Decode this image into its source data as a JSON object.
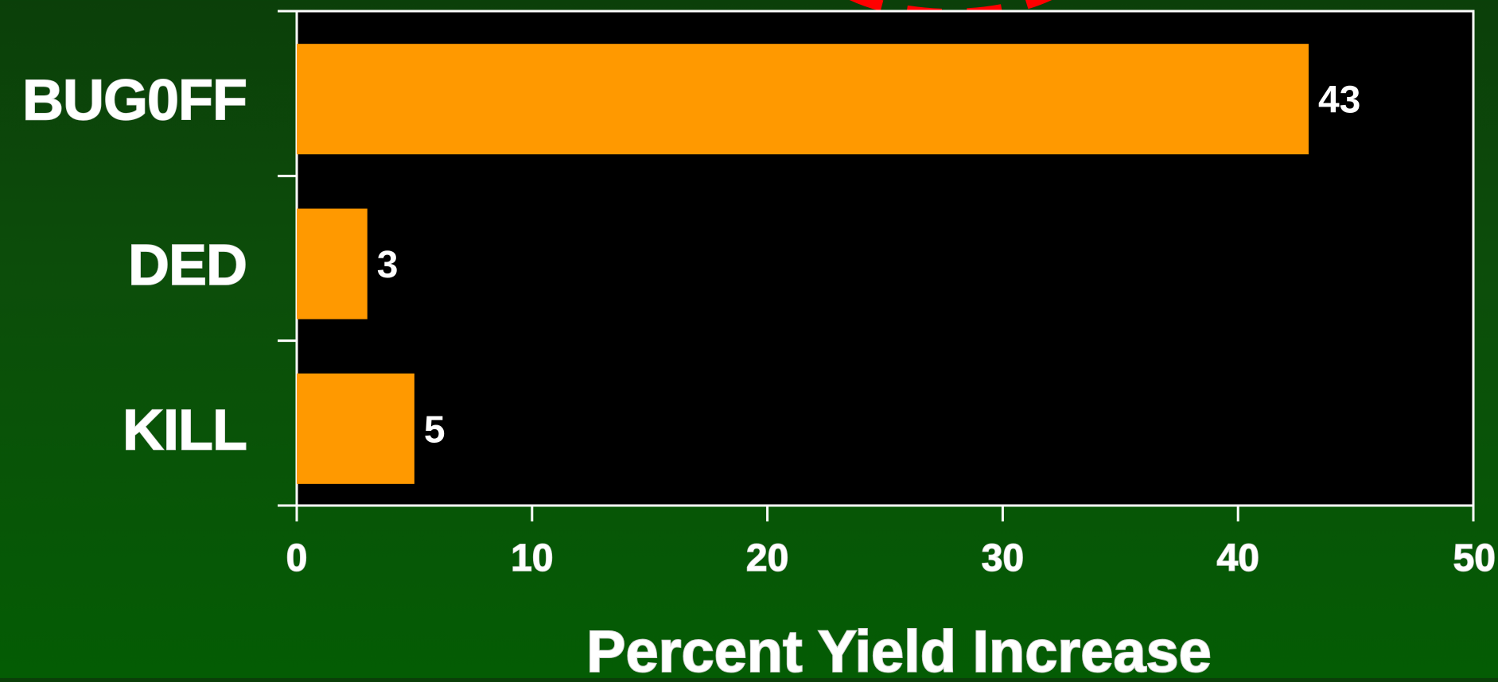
{
  "chart_data": {
    "type": "bar",
    "orientation": "horizontal",
    "categories": [
      "BUG0FF",
      "DED",
      "KILL"
    ],
    "values": [
      43,
      3,
      5
    ],
    "data_labels": [
      "43",
      "3",
      "5"
    ],
    "xlabel": "Percent Yield Increase",
    "ylabel": "",
    "xlim": [
      0,
      50
    ],
    "x_ticks": [
      "0",
      "10",
      "20",
      "30",
      "40",
      "50"
    ],
    "grid": false,
    "legend": "none",
    "colors": {
      "bar": "#ff9900",
      "plot_background": "#000000",
      "axis": "#ffffff",
      "annotation_dash": "#ff0000",
      "page_background": "#0b4d0a"
    }
  }
}
